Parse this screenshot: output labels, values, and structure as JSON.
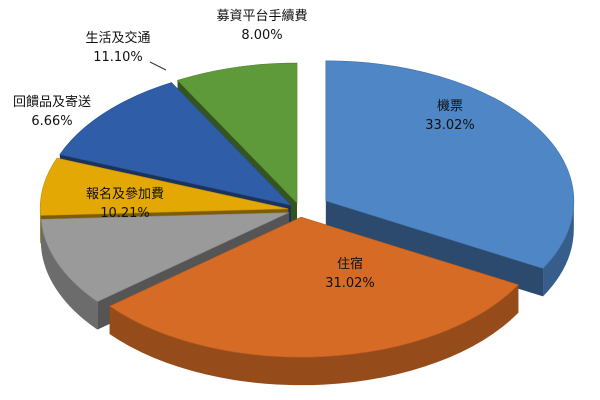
{
  "chart_data": {
    "type": "pie",
    "title": "",
    "slices": [
      {
        "name": "機票",
        "percent_label": "33.02%",
        "value": 33.02,
        "color": "#4f86c6"
      },
      {
        "name": "住宿",
        "percent_label": "31.02%",
        "value": 31.02,
        "color": "#d66b26"
      },
      {
        "name": "報名及參加費",
        "percent_label": "10.21%",
        "value": 10.21,
        "color": "#9a9a9a"
      },
      {
        "name": "回饋品及寄送",
        "percent_label": "6.66%",
        "value": 6.66,
        "color": "#e3a804"
      },
      {
        "name": "生活及交通",
        "percent_label": "11.10%",
        "value": 11.1,
        "color": "#2f5da8"
      },
      {
        "name": "募資平台手續費",
        "percent_label": "8.00%",
        "value": 8.0,
        "color": "#5f9a3a"
      }
    ]
  }
}
